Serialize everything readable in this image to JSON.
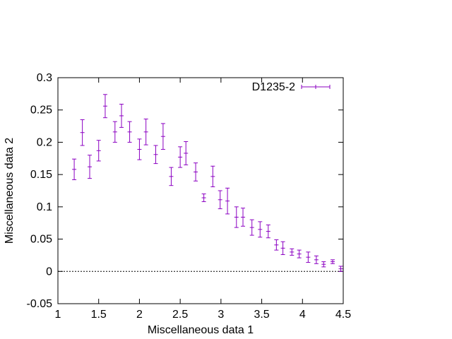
{
  "chart_data": {
    "type": "scatter",
    "title": "",
    "xlabel": "Miscellaneous data 1",
    "ylabel": "Miscellaneous data 2",
    "xlim": [
      1,
      4.5
    ],
    "ylim": [
      -0.05,
      0.3
    ],
    "x_ticks": [
      "1",
      "1.5",
      "2",
      "2.5",
      "3",
      "3.5",
      "4",
      "4.5"
    ],
    "x_tick_values": [
      1,
      1.5,
      2,
      2.5,
      3,
      3.5,
      4,
      4.5
    ],
    "y_ticks": [
      "-0.05",
      "0",
      "0.05",
      "0.1",
      "0.15",
      "0.2",
      "0.25",
      "0.3"
    ],
    "y_tick_values": [
      -0.05,
      0,
      0.05,
      0.1,
      0.15,
      0.2,
      0.25,
      0.3
    ],
    "grid": false,
    "zero_line": true,
    "legend_position": "top-right",
    "series": [
      {
        "name": "D1235-2",
        "color": "#8B00C2",
        "style": "points-with-y-errorbars",
        "points": [
          {
            "x": 1.2,
            "y": 0.158,
            "err": 0.016
          },
          {
            "x": 1.3,
            "y": 0.215,
            "err": 0.02
          },
          {
            "x": 1.39,
            "y": 0.162,
            "err": 0.018
          },
          {
            "x": 1.5,
            "y": 0.187,
            "err": 0.016
          },
          {
            "x": 1.58,
            "y": 0.256,
            "err": 0.018
          },
          {
            "x": 1.7,
            "y": 0.216,
            "err": 0.016
          },
          {
            "x": 1.78,
            "y": 0.241,
            "err": 0.018
          },
          {
            "x": 1.88,
            "y": 0.216,
            "err": 0.016
          },
          {
            "x": 2.0,
            "y": 0.189,
            "err": 0.016
          },
          {
            "x": 2.08,
            "y": 0.216,
            "err": 0.02
          },
          {
            "x": 2.2,
            "y": 0.181,
            "err": 0.014
          },
          {
            "x": 2.29,
            "y": 0.209,
            "err": 0.02
          },
          {
            "x": 2.39,
            "y": 0.147,
            "err": 0.014
          },
          {
            "x": 2.5,
            "y": 0.177,
            "err": 0.016
          },
          {
            "x": 2.57,
            "y": 0.183,
            "err": 0.018
          },
          {
            "x": 2.69,
            "y": 0.154,
            "err": 0.014
          },
          {
            "x": 2.79,
            "y": 0.114,
            "err": 0.006
          },
          {
            "x": 2.9,
            "y": 0.147,
            "err": 0.016
          },
          {
            "x": 2.99,
            "y": 0.111,
            "err": 0.014
          },
          {
            "x": 3.08,
            "y": 0.109,
            "err": 0.02
          },
          {
            "x": 3.19,
            "y": 0.084,
            "err": 0.016
          },
          {
            "x": 3.27,
            "y": 0.084,
            "err": 0.014
          },
          {
            "x": 3.38,
            "y": 0.068,
            "err": 0.012
          },
          {
            "x": 3.48,
            "y": 0.065,
            "err": 0.012
          },
          {
            "x": 3.58,
            "y": 0.062,
            "err": 0.01
          },
          {
            "x": 3.68,
            "y": 0.041,
            "err": 0.008
          },
          {
            "x": 3.76,
            "y": 0.036,
            "err": 0.01
          },
          {
            "x": 3.87,
            "y": 0.03,
            "err": 0.005
          },
          {
            "x": 3.96,
            "y": 0.027,
            "err": 0.006
          },
          {
            "x": 4.07,
            "y": 0.022,
            "err": 0.008
          },
          {
            "x": 4.17,
            "y": 0.018,
            "err": 0.006
          },
          {
            "x": 4.26,
            "y": 0.011,
            "err": 0.004
          },
          {
            "x": 4.37,
            "y": 0.015,
            "err": 0.003
          },
          {
            "x": 4.47,
            "y": 0.004,
            "err": 0.004
          }
        ]
      }
    ]
  }
}
